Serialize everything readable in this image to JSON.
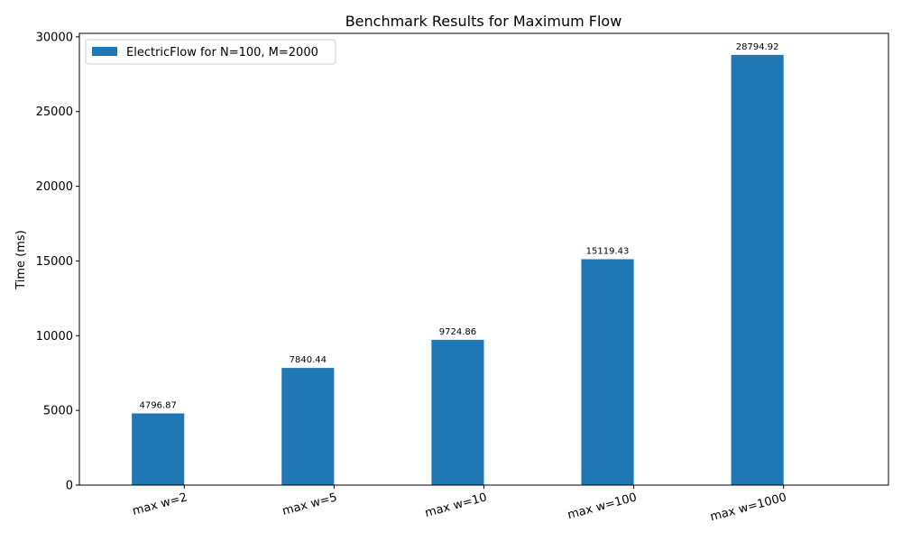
{
  "chart_data": {
    "type": "bar",
    "title": "Benchmark Results for Maximum Flow",
    "xlabel": "",
    "ylabel": "Time (ms)",
    "categories": [
      "max w=2",
      "max w=5",
      "max w=10",
      "max w=100",
      "max w=1000"
    ],
    "series": [
      {
        "name": "ElectricFlow for N=100, M=2000",
        "color": "#1f77b4",
        "values": [
          4796.87,
          7840.44,
          9724.86,
          15119.43,
          28794.92
        ],
        "value_labels": [
          "4796.87",
          "7840.44",
          "9724.86",
          "15119.43",
          "28794.92"
        ]
      }
    ],
    "ylim": [
      0,
      30235
    ],
    "yticks": [
      0,
      5000,
      10000,
      15000,
      20000,
      25000,
      30000
    ],
    "legend_position": "upper-left",
    "grid": false
  }
}
